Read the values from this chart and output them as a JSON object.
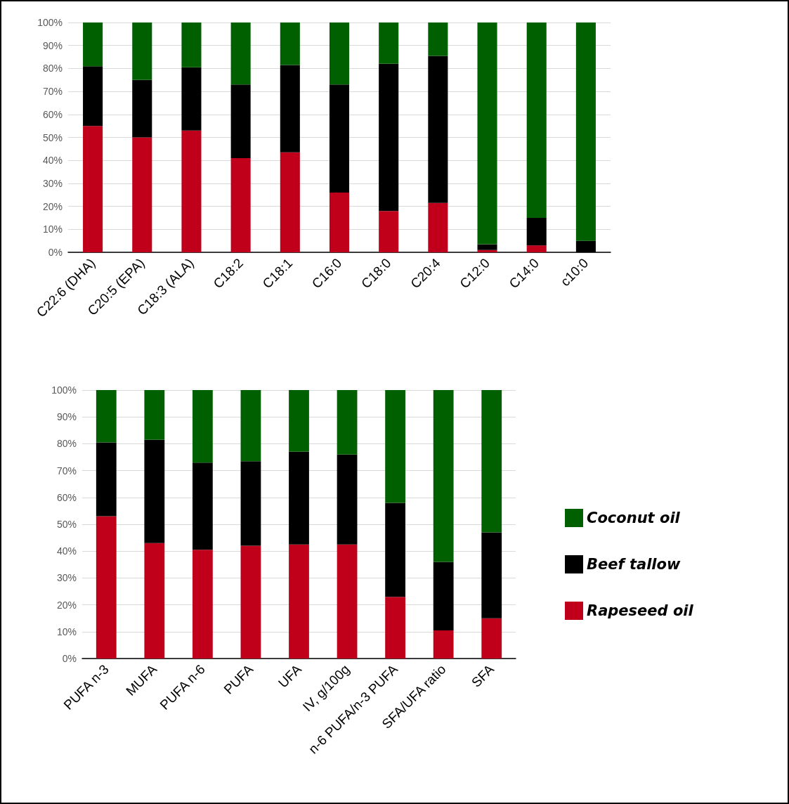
{
  "chart_data": [
    {
      "type": "bar",
      "stacked": true,
      "categories": [
        "C22:6 (DHA)",
        "C20:5 (EPA)",
        "C18:3 (ALA)",
        "C18:2",
        "C18:1",
        "C16:0",
        "C18:0",
        "C20:4",
        "C12:0",
        "C14:0",
        "c10:0"
      ],
      "series": [
        {
          "color": "#c0001a",
          "values": [
            55,
            50,
            53,
            41,
            43.5,
            26,
            18,
            21.5,
            1,
            3,
            0
          ]
        },
        {
          "color": "#000000",
          "values": [
            26,
            25,
            27.5,
            32,
            38,
            47,
            64,
            64,
            2.5,
            12,
            5
          ]
        },
        {
          "color": "#006000",
          "values": [
            19,
            25,
            19.5,
            27,
            18.5,
            27,
            18,
            14.5,
            96.5,
            85,
            95
          ]
        }
      ],
      "ylim": [
        0,
        100
      ],
      "yticks": [
        {
          "value": 0,
          "label": "0%"
        },
        {
          "value": 10,
          "label": "10%"
        },
        {
          "value": 20,
          "label": "20%"
        },
        {
          "value": 30,
          "label": "30%"
        },
        {
          "value": 40,
          "label": "40%"
        },
        {
          "value": 50,
          "label": "50%"
        },
        {
          "value": 60,
          "label": "60%"
        },
        {
          "value": 70,
          "label": "70%"
        },
        {
          "value": 80,
          "label": "80%"
        },
        {
          "value": 90,
          "label": "90%"
        },
        {
          "value": 100,
          "label": "100%"
        }
      ],
      "grid": "y",
      "legend": false
    },
    {
      "type": "bar",
      "stacked": true,
      "categories": [
        "PUFA n-3",
        "MUFA",
        "PUFA n-6",
        "PUFA",
        "UFA",
        "IV, g/100g",
        "n-6 PUFA/n-3 PUFA",
        "SFA/UFA ratio",
        "SFA"
      ],
      "series": [
        {
          "name": "Rapeseed oil",
          "color": "#c0001a",
          "values": [
            53,
            43,
            40.5,
            42,
            42.5,
            42.5,
            23,
            10.5,
            15
          ]
        },
        {
          "name": "Beef tallow",
          "color": "#000000",
          "values": [
            27.5,
            38.5,
            32.5,
            31.5,
            34.5,
            33.5,
            35,
            25.5,
            32
          ]
        },
        {
          "name": "Coconut oil",
          "color": "#006000",
          "values": [
            19.5,
            18.5,
            27,
            26.5,
            23,
            24,
            42,
            64,
            53
          ]
        }
      ],
      "ylim": [
        0,
        100
      ],
      "yticks": [
        {
          "value": 0,
          "label": "0%"
        },
        {
          "value": 10,
          "label": "10%"
        },
        {
          "value": 20,
          "label": "20%"
        },
        {
          "value": 30,
          "label": "30%"
        },
        {
          "value": 40,
          "label": "40%"
        },
        {
          "value": 50,
          "label": "50%"
        },
        {
          "value": 60,
          "label": "60%"
        },
        {
          "value": 70,
          "label": "70%"
        },
        {
          "value": 80,
          "label": "80%"
        },
        {
          "value": 90,
          "label": "90%"
        },
        {
          "value": 100,
          "label": "100%"
        }
      ],
      "grid": "y",
      "legend": "right"
    }
  ]
}
